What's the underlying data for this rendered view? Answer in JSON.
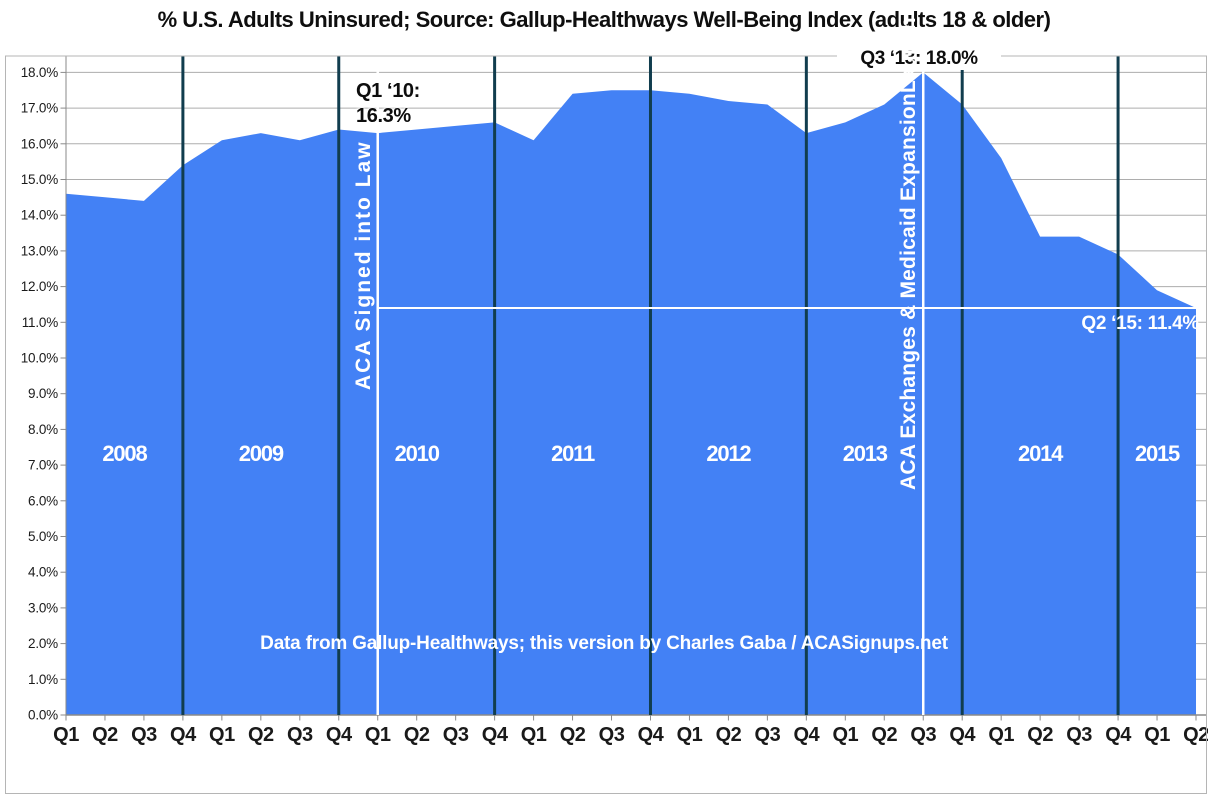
{
  "title": "% U.S. Adults Uninsured; Source: Gallup-Healthways Well-Being Index (adults 18 & older)",
  "credit": "Data from Gallup-Healthways; this version by Charles Gaba / ACASignups.net",
  "annotations": {
    "aca_law_line1": "Q1 ‘10:",
    "aca_law_line2": "16.3%",
    "peak": "Q3 ‘13: 18.0%",
    "latest": "Q2 ‘15: 11.4%",
    "aca_law_vertical": "ACA Signed into Law",
    "aca_exchanges_vertical": "ACA Exchanges & Medicaid ExpansionLaunch"
  },
  "colors": {
    "area": "#4381F5",
    "year_divider": "#113D4E",
    "event_line": "#FFFFFF",
    "reference_line": "#FFFFFF",
    "grid": "#ADADAD",
    "axis": "#8A8A8A",
    "frame": "#B5B5B5",
    "tick_text": "#1A1A1A",
    "label_on_area": "#FFFFFF"
  },
  "chart_data": {
    "type": "area",
    "title": "% U.S. Adults Uninsured; Source: Gallup-Healthways Well-Being Index (adults 18 & older)",
    "categories": [
      "Q1 '08",
      "Q2 '08",
      "Q3 '08",
      "Q4 '08",
      "Q1 '09",
      "Q2 '09",
      "Q3 '09",
      "Q4 '09",
      "Q1 '10",
      "Q2 '10",
      "Q3 '10",
      "Q4 '10",
      "Q1 '11",
      "Q2 '11",
      "Q3 '11",
      "Q4 '11",
      "Q1 '12",
      "Q2 '12",
      "Q3 '12",
      "Q4 '12",
      "Q1 '13",
      "Q2 '13",
      "Q3 '13",
      "Q4 '13",
      "Q1 '14",
      "Q2 '14",
      "Q3 '14",
      "Q4 '14",
      "Q1 '15",
      "Q2 '15"
    ],
    "values": [
      14.6,
      14.5,
      14.4,
      15.4,
      16.1,
      16.3,
      16.1,
      16.4,
      16.3,
      16.4,
      16.5,
      16.6,
      16.1,
      17.4,
      17.5,
      17.5,
      17.4,
      17.2,
      17.1,
      16.3,
      16.6,
      17.1,
      18.0,
      17.1,
      15.6,
      13.4,
      13.4,
      12.9,
      11.9,
      11.4
    ],
    "x_tick_labels": [
      "Q1",
      "Q2",
      "Q3",
      "Q4",
      "Q1",
      "Q2",
      "Q3",
      "Q4",
      "Q1",
      "Q2",
      "Q3",
      "Q4",
      "Q1",
      "Q2",
      "Q3",
      "Q4",
      "Q1",
      "Q2",
      "Q3",
      "Q4",
      "Q1",
      "Q2",
      "Q3",
      "Q4",
      "Q1",
      "Q2",
      "Q3",
      "Q4",
      "Q1",
      "Q2"
    ],
    "y_tick_labels": [
      "0.0%",
      "1.0%",
      "2.0%",
      "3.0%",
      "4.0%",
      "5.0%",
      "6.0%",
      "7.0%",
      "8.0%",
      "9.0%",
      "10.0%",
      "11.0%",
      "12.0%",
      "13.0%",
      "14.0%",
      "15.0%",
      "16.0%",
      "17.0%",
      "18.0%"
    ],
    "ylim": [
      0,
      18
    ],
    "grid": true,
    "legend": false,
    "year_labels": [
      "2008",
      "2009",
      "2010",
      "2011",
      "2012",
      "2013",
      "2014",
      "2015"
    ],
    "year_divider_after_index": [
      3,
      7,
      11,
      15,
      19,
      23,
      27
    ],
    "event_lines": [
      {
        "index": 8,
        "category": "Q1 '10",
        "value": 16.3,
        "label": "ACA Signed into Law",
        "annotation": "Q1 '10: 16.3%"
      },
      {
        "index": 22,
        "category": "Q3 '13",
        "value": 18.0,
        "label": "ACA Exchanges & Medicaid ExpansionLaunch",
        "annotation": "Q3 '13: 18.0%"
      }
    ],
    "reference_line": {
      "value": 11.4,
      "start_index": 8,
      "annotation": "Q2 '15: 11.4%"
    }
  }
}
